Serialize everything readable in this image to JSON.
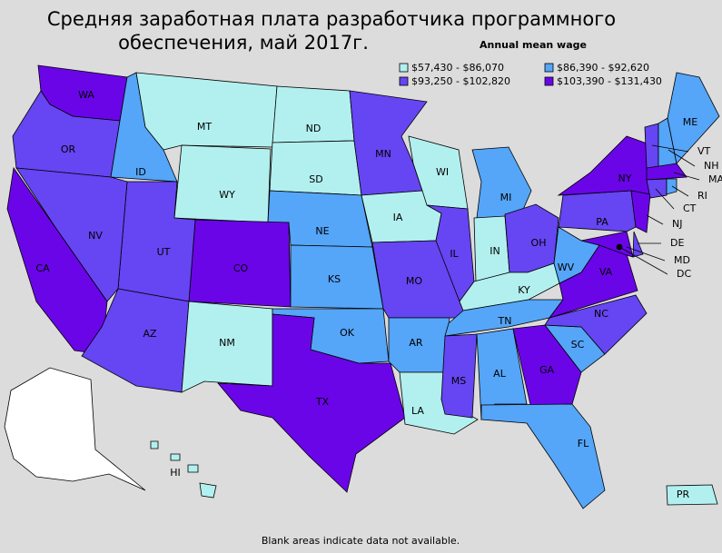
{
  "title_lines": [
    "Средняя заработная плата разработчика программного",
    "обеспечения, май 2017г."
  ],
  "subtitle": "Annual mean wage",
  "legend": [
    {
      "label": "$57,430 - $86,070",
      "color": "#b2f0ef"
    },
    {
      "label": "$86,390 - $92,620",
      "color": "#55a5f8"
    },
    {
      "label": "$93,250 - $102,820",
      "color": "#6645f2"
    },
    {
      "label": "$103,390 - $131,430",
      "color": "#6a05e8"
    }
  ],
  "states": [
    {
      "label": "WA",
      "legend": 3
    },
    {
      "label": "OR",
      "legend": 2
    },
    {
      "label": "ID",
      "legend": 1
    },
    {
      "label": "MT",
      "legend": 0
    },
    {
      "label": "ND",
      "legend": 0
    },
    {
      "label": "SD",
      "legend": 0
    },
    {
      "label": "WY",
      "legend": 0
    },
    {
      "label": "NE",
      "legend": 1
    },
    {
      "label": "CO",
      "legend": 3
    },
    {
      "label": "UT",
      "legend": 2
    },
    {
      "label": "NV",
      "legend": 2
    },
    {
      "label": "CA",
      "legend": 3
    },
    {
      "label": "AZ",
      "legend": 2
    },
    {
      "label": "NM",
      "legend": 0
    },
    {
      "label": "KS",
      "legend": 1
    },
    {
      "label": "OK",
      "legend": 1
    },
    {
      "label": "TX",
      "legend": 3
    },
    {
      "label": "MN",
      "legend": 2
    },
    {
      "label": "IA",
      "legend": 0
    },
    {
      "label": "MO",
      "legend": 2
    },
    {
      "label": "AR",
      "legend": 1
    },
    {
      "label": "LA",
      "legend": 0
    },
    {
      "label": "WI",
      "legend": 0
    },
    {
      "label": "IL",
      "legend": 2
    },
    {
      "label": "MI",
      "legend": 1
    },
    {
      "label": "IN",
      "legend": 0
    },
    {
      "label": "OH",
      "legend": 2
    },
    {
      "label": "KY",
      "legend": 0
    },
    {
      "label": "TN",
      "legend": 1
    },
    {
      "label": "MS",
      "legend": 2
    },
    {
      "label": "AL",
      "legend": 1
    },
    {
      "label": "GA",
      "legend": 3
    },
    {
      "label": "FL",
      "legend": 1
    },
    {
      "label": "SC",
      "legend": 1
    },
    {
      "label": "NC",
      "legend": 2
    },
    {
      "label": "VA",
      "legend": 3
    },
    {
      "label": "WV",
      "legend": 1
    },
    {
      "label": "PA",
      "legend": 2
    },
    {
      "label": "NY",
      "legend": 3
    },
    {
      "label": "NJ",
      "legend": 3
    },
    {
      "label": "DE",
      "legend": 2
    },
    {
      "label": "MD",
      "legend": 3
    },
    {
      "label": "DC",
      "legend": 3
    },
    {
      "label": "VT",
      "legend": 2
    },
    {
      "label": "NH",
      "legend": 1
    },
    {
      "label": "ME",
      "legend": 1
    },
    {
      "label": "MA",
      "legend": 3
    },
    {
      "label": "CT",
      "legend": 2
    },
    {
      "label": "RI",
      "legend": 1
    },
    {
      "label": "HI",
      "legend": 0
    },
    {
      "label": "PR",
      "legend": 0
    }
  ],
  "footer": "Blank areas indicate data not available."
}
